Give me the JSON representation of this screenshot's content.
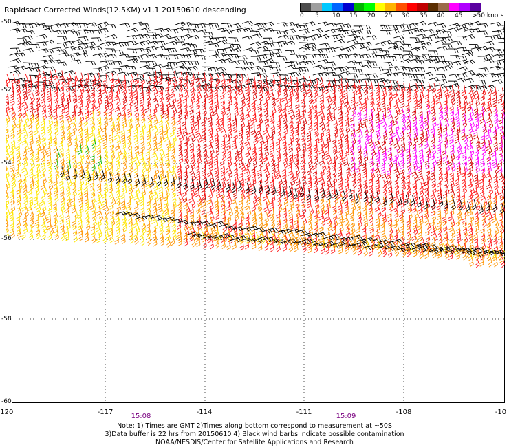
{
  "title": "Rapidsact Corrected Winds(12.5KM) v1.1 20150610 descending",
  "legend": {
    "colors": [
      "#4c4c4c",
      "#9e9e9e",
      "#00c8ff",
      "#0066ff",
      "#0000d0",
      "#00b400",
      "#00ff00",
      "#ffff00",
      "#ffb400",
      "#ff5000",
      "#ff0000",
      "#c00000",
      "#5a2d00",
      "#9b6b4a",
      "#ff00ff",
      "#b000ff",
      "#5a00a0"
    ],
    "labels": [
      "0",
      "5",
      "10",
      "15",
      "20",
      "25",
      "30",
      "35",
      "40",
      "45",
      ">50 knots"
    ]
  },
  "lon_labels": [
    "-120",
    "-117",
    "-114",
    "-111",
    "-108",
    "-10"
  ],
  "lat_labels": [
    "-50",
    "-52",
    "-54",
    "-56",
    "-58",
    "-60"
  ],
  "times": [
    "15:08",
    "15:09"
  ],
  "notes": [
    "Note: 1) Times are GMT 2)Times along bottom correspond to measurement at ~50S",
    "3)Data buffer is 22 hrs from 20150610 4) Black wind barbs indicate possible contamination",
    "NOAA/NESDIS/Center for Satellite Applications and Research"
  ]
}
